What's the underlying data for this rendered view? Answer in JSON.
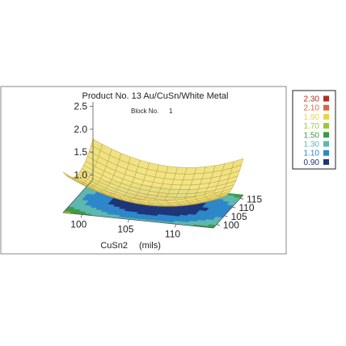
{
  "chart_data": {
    "type": "surface",
    "title": "Product No. 13  Au/CuSn/White Metal",
    "subtitle_label": "Block No.",
    "subtitle_value": "1",
    "xlabel": "CuSn2",
    "xunit": "(mils)",
    "x_ticks": [
      "100",
      "105",
      "110"
    ],
    "y_ticks": [
      "100",
      "105",
      "110",
      "115"
    ],
    "z_ticks": [
      "1.0",
      "1.5",
      "2.0",
      "2.5"
    ],
    "xlim": [
      98,
      114
    ],
    "ylim": [
      98,
      117
    ],
    "zlim": [
      0.9,
      2.6
    ],
    "surface_model": {
      "x_center": 106.5,
      "y_center": 107.5,
      "z_min": 0.95,
      "curvature_x": 0.006,
      "curvature_y": 0.0045
    },
    "legend": [
      {
        "label": "2.30",
        "color": "#b03020"
      },
      {
        "label": "2.10",
        "color": "#d8683a"
      },
      {
        "label": "1.90",
        "color": "#e8d44a"
      },
      {
        "label": "1.70",
        "color": "#9cc840"
      },
      {
        "label": "1.50",
        "color": "#3d9a48"
      },
      {
        "label": "1.30",
        "color": "#5cb8ae"
      },
      {
        "label": "1.10",
        "color": "#2c86c8"
      },
      {
        "label": "0.90",
        "color": "#1c3478"
      }
    ],
    "grid": false,
    "legend_position": "right"
  }
}
